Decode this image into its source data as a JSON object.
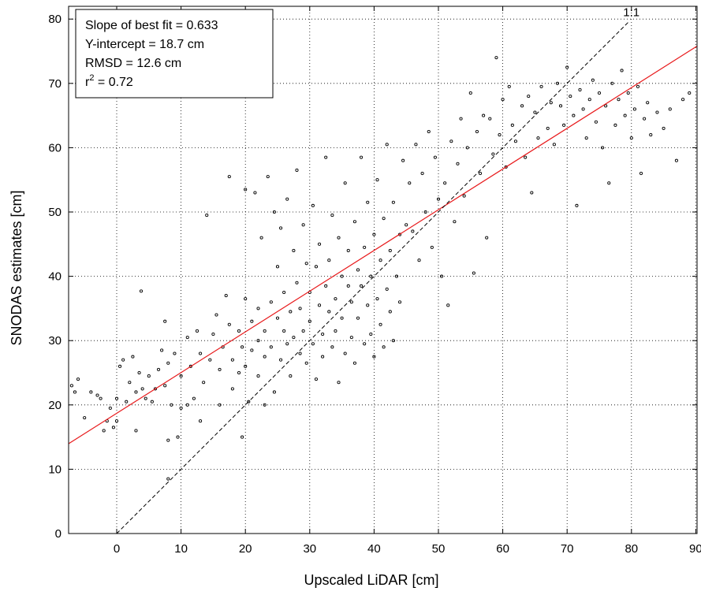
{
  "chart_data": {
    "type": "scatter",
    "xlabel": "Upscaled LiDAR [cm]",
    "ylabel": "SNODAS estimates [cm]",
    "xlim": [
      -7.5,
      90
    ],
    "ylim": [
      0,
      82
    ],
    "x_ticks": [
      "0",
      "10",
      "20",
      "30",
      "40",
      "50",
      "60",
      "70",
      "80",
      "90"
    ],
    "y_ticks": [
      "0",
      "10",
      "20",
      "30",
      "40",
      "50",
      "60",
      "70",
      "80"
    ],
    "grid": true,
    "stats": {
      "slope": "Slope of best fit = 0.633",
      "intercept": "Y-intercept = 18.7 cm",
      "rmsd": "RMSD = 12.6 cm",
      "r2_prefix": "r",
      "r2_sup": "2",
      "r2_value": " = 0.72"
    },
    "one_to_one_label": "1:1",
    "best_fit": {
      "slope": 0.633,
      "intercept": 18.7,
      "color": "#e8191b"
    },
    "one_to_one": {
      "slope": 1,
      "intercept": 0,
      "color": "#000000"
    },
    "point_color": "#000000",
    "points": [
      [
        -7.0,
        23.0
      ],
      [
        -6.5,
        22.0
      ],
      [
        -6.0,
        24.0
      ],
      [
        -5.0,
        18.0
      ],
      [
        -4.0,
        22.0
      ],
      [
        -3.0,
        21.5
      ],
      [
        -2.5,
        21.0
      ],
      [
        -2.0,
        16.0
      ],
      [
        -1.5,
        17.5
      ],
      [
        -1.0,
        19.5
      ],
      [
        -0.5,
        16.5
      ],
      [
        0.0,
        21.0
      ],
      [
        0.0,
        17.5
      ],
      [
        0.5,
        26.0
      ],
      [
        1.0,
        27.0
      ],
      [
        1.5,
        20.5
      ],
      [
        2.0,
        23.5
      ],
      [
        2.5,
        27.5
      ],
      [
        3.0,
        22.0
      ],
      [
        3.0,
        16.0
      ],
      [
        3.5,
        25.0
      ],
      [
        3.8,
        37.7
      ],
      [
        4.0,
        22.5
      ],
      [
        4.5,
        21.0
      ],
      [
        5.0,
        24.5
      ],
      [
        5.5,
        20.5
      ],
      [
        6.0,
        22.5
      ],
      [
        6.5,
        25.5
      ],
      [
        7.0,
        28.5
      ],
      [
        7.5,
        33.0
      ],
      [
        7.5,
        23.0
      ],
      [
        8.0,
        26.5
      ],
      [
        8.0,
        14.5
      ],
      [
        8.5,
        20.0
      ],
      [
        8.0,
        8.5
      ],
      [
        9.0,
        28.0
      ],
      [
        9.5,
        15.0
      ],
      [
        10.0,
        19.5
      ],
      [
        10.0,
        24.5
      ],
      [
        11.0,
        30.5
      ],
      [
        11.0,
        20.0
      ],
      [
        11.5,
        26.0
      ],
      [
        12.0,
        21.0
      ],
      [
        12.5,
        31.5
      ],
      [
        13.0,
        28.0
      ],
      [
        13.0,
        17.5
      ],
      [
        13.5,
        23.5
      ],
      [
        14.0,
        49.5
      ],
      [
        14.5,
        27.0
      ],
      [
        15.0,
        31.0
      ],
      [
        15.5,
        34.0
      ],
      [
        16.0,
        25.5
      ],
      [
        16.0,
        20.0
      ],
      [
        16.5,
        29.0
      ],
      [
        17.0,
        37.0
      ],
      [
        17.5,
        32.5
      ],
      [
        17.5,
        55.5
      ],
      [
        18.0,
        27.0
      ],
      [
        18.0,
        22.5
      ],
      [
        19.0,
        31.5
      ],
      [
        19.0,
        25.0
      ],
      [
        19.5,
        29.0
      ],
      [
        19.5,
        15.0
      ],
      [
        20.0,
        36.5
      ],
      [
        20.0,
        26.0
      ],
      [
        20.0,
        53.5
      ],
      [
        20.5,
        20.5
      ],
      [
        21.0,
        33.0
      ],
      [
        21.0,
        28.5
      ],
      [
        21.5,
        53.0
      ],
      [
        22.0,
        35.0
      ],
      [
        22.0,
        24.5
      ],
      [
        22.0,
        30.0
      ],
      [
        22.5,
        46.0
      ],
      [
        23.0,
        31.5
      ],
      [
        23.0,
        27.5
      ],
      [
        23.0,
        20.0
      ],
      [
        23.5,
        55.5
      ],
      [
        24.0,
        36.0
      ],
      [
        24.0,
        29.0
      ],
      [
        24.5,
        22.0
      ],
      [
        24.5,
        50.0
      ],
      [
        25.0,
        33.5
      ],
      [
        25.0,
        41.5
      ],
      [
        25.5,
        27.0
      ],
      [
        25.5,
        47.5
      ],
      [
        26.0,
        31.5
      ],
      [
        26.0,
        37.5
      ],
      [
        26.5,
        29.5
      ],
      [
        26.5,
        52.0
      ],
      [
        27.0,
        24.5
      ],
      [
        27.0,
        34.5
      ],
      [
        27.5,
        44.0
      ],
      [
        27.5,
        30.5
      ],
      [
        28.0,
        39.0
      ],
      [
        28.0,
        56.5
      ],
      [
        28.5,
        28.0
      ],
      [
        28.5,
        35.0
      ],
      [
        29.0,
        31.5
      ],
      [
        29.0,
        48.0
      ],
      [
        29.5,
        26.5
      ],
      [
        29.5,
        42.0
      ],
      [
        30.0,
        33.0
      ],
      [
        30.0,
        37.5
      ],
      [
        30.5,
        29.5
      ],
      [
        30.5,
        51.0
      ],
      [
        31.0,
        41.5
      ],
      [
        31.0,
        24.0
      ],
      [
        31.5,
        35.5
      ],
      [
        31.5,
        45.0
      ],
      [
        32.0,
        31.0
      ],
      [
        32.0,
        27.5
      ],
      [
        32.5,
        38.5
      ],
      [
        32.5,
        58.5
      ],
      [
        33.0,
        34.5
      ],
      [
        33.0,
        42.5
      ],
      [
        33.5,
        29.0
      ],
      [
        33.5,
        49.5
      ],
      [
        34.0,
        36.5
      ],
      [
        34.0,
        31.5
      ],
      [
        34.5,
        23.5
      ],
      [
        34.5,
        46.0
      ],
      [
        35.0,
        40.0
      ],
      [
        35.0,
        33.5
      ],
      [
        35.5,
        28.0
      ],
      [
        35.5,
        54.5
      ],
      [
        36.0,
        38.5
      ],
      [
        36.0,
        44.0
      ],
      [
        36.5,
        30.5
      ],
      [
        36.5,
        36.0
      ],
      [
        37.0,
        48.5
      ],
      [
        37.0,
        26.5
      ],
      [
        37.5,
        41.0
      ],
      [
        37.5,
        33.5
      ],
      [
        38.0,
        38.5
      ],
      [
        38.0,
        58.5
      ],
      [
        38.5,
        29.5
      ],
      [
        38.5,
        44.5
      ],
      [
        39.0,
        35.5
      ],
      [
        39.0,
        51.5
      ],
      [
        39.5,
        31.0
      ],
      [
        39.5,
        40.0
      ],
      [
        40.0,
        46.5
      ],
      [
        40.0,
        27.5
      ],
      [
        40.5,
        36.5
      ],
      [
        40.5,
        55.0
      ],
      [
        41.0,
        42.5
      ],
      [
        41.0,
        32.5
      ],
      [
        41.5,
        49.0
      ],
      [
        41.5,
        29.0
      ],
      [
        42.0,
        38.0
      ],
      [
        42.0,
        60.5
      ],
      [
        42.5,
        44.0
      ],
      [
        42.5,
        34.5
      ],
      [
        43.0,
        51.5
      ],
      [
        43.0,
        30.0
      ],
      [
        43.5,
        40.0
      ],
      [
        44.0,
        46.5
      ],
      [
        44.0,
        36.0
      ],
      [
        44.5,
        58.0
      ],
      [
        45.0,
        48.0
      ],
      [
        45.5,
        54.5
      ],
      [
        46.0,
        47.0
      ],
      [
        46.5,
        60.5
      ],
      [
        47.0,
        42.5
      ],
      [
        47.5,
        56.0
      ],
      [
        48.0,
        50.0
      ],
      [
        48.5,
        62.5
      ],
      [
        49.0,
        44.5
      ],
      [
        49.5,
        58.5
      ],
      [
        50.0,
        52.0
      ],
      [
        50.5,
        40.0
      ],
      [
        51.0,
        54.5
      ],
      [
        51.5,
        35.5
      ],
      [
        52.0,
        61.0
      ],
      [
        52.5,
        48.5
      ],
      [
        53.0,
        57.5
      ],
      [
        53.5,
        64.5
      ],
      [
        54.0,
        52.5
      ],
      [
        54.5,
        60.0
      ],
      [
        55.0,
        68.5
      ],
      [
        55.5,
        40.5
      ],
      [
        56.0,
        62.5
      ],
      [
        56.5,
        56.0
      ],
      [
        57.0,
        65.0
      ],
      [
        57.5,
        46.0
      ],
      [
        58.0,
        64.5
      ],
      [
        58.5,
        59.0
      ],
      [
        59.0,
        74.0
      ],
      [
        59.5,
        62.0
      ],
      [
        60.0,
        67.5
      ],
      [
        60.5,
        57.0
      ],
      [
        61.0,
        69.5
      ],
      [
        61.5,
        63.5
      ],
      [
        62.0,
        61.0
      ],
      [
        63.0,
        66.5
      ],
      [
        63.5,
        58.5
      ],
      [
        64.0,
        68.0
      ],
      [
        64.5,
        53.0
      ],
      [
        65.0,
        65.5
      ],
      [
        65.5,
        61.5
      ],
      [
        66.0,
        69.5
      ],
      [
        67.0,
        63.0
      ],
      [
        67.5,
        67.0
      ],
      [
        68.0,
        60.5
      ],
      [
        68.5,
        70.0
      ],
      [
        69.0,
        66.5
      ],
      [
        69.5,
        63.5
      ],
      [
        70.0,
        72.5
      ],
      [
        70.5,
        68.0
      ],
      [
        71.0,
        65.0
      ],
      [
        71.5,
        51.0
      ],
      [
        72.0,
        69.0
      ],
      [
        72.5,
        66.0
      ],
      [
        73.0,
        61.5
      ],
      [
        73.5,
        67.5
      ],
      [
        74.0,
        70.5
      ],
      [
        74.5,
        64.0
      ],
      [
        75.0,
        68.5
      ],
      [
        75.5,
        60.0
      ],
      [
        76.0,
        66.5
      ],
      [
        76.5,
        54.5
      ],
      [
        77.0,
        70.0
      ],
      [
        77.5,
        63.5
      ],
      [
        78.0,
        67.5
      ],
      [
        78.5,
        72.0
      ],
      [
        79.0,
        65.0
      ],
      [
        79.5,
        68.5
      ],
      [
        80.0,
        61.5
      ],
      [
        80.5,
        66.0
      ],
      [
        81.0,
        69.5
      ],
      [
        81.5,
        56.0
      ],
      [
        82.0,
        64.5
      ],
      [
        82.5,
        67.0
      ],
      [
        83.0,
        62.0
      ],
      [
        84.0,
        65.5
      ],
      [
        85.0,
        63.0
      ],
      [
        86.0,
        66.0
      ],
      [
        87.0,
        58.0
      ],
      [
        88.0,
        67.5
      ],
      [
        89.0,
        68.5
      ]
    ]
  }
}
